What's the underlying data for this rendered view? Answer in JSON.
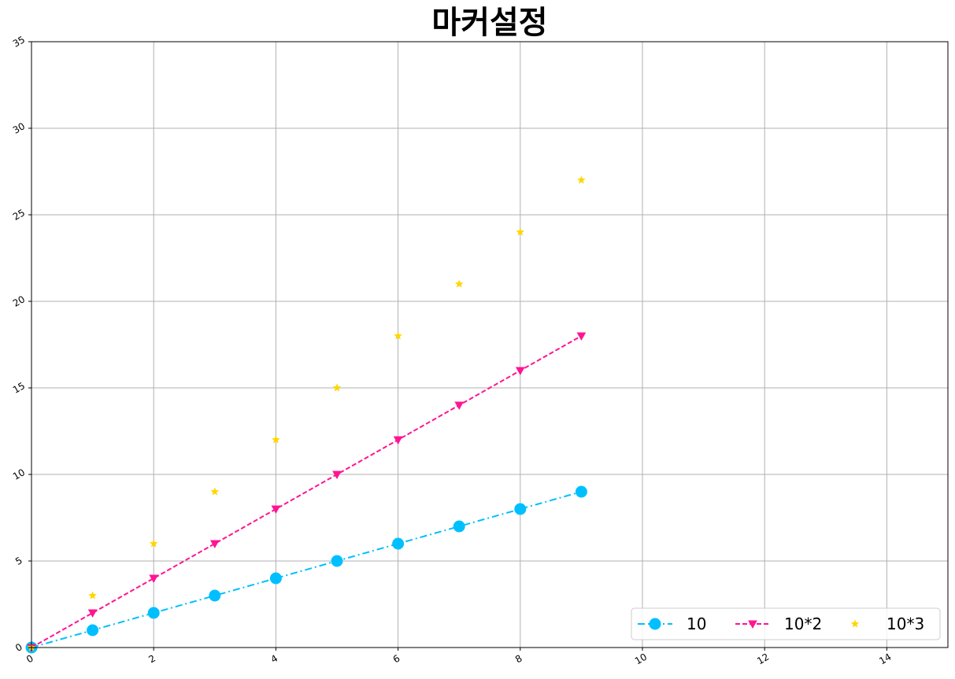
{
  "chart_data": {
    "type": "line",
    "title": "마커설정",
    "xlabel": "",
    "ylabel": "",
    "xlim": [
      0,
      15
    ],
    "ylim": [
      0,
      35
    ],
    "xticks": [
      0,
      2,
      4,
      6,
      8,
      10,
      12,
      14
    ],
    "yticks": [
      0,
      5,
      10,
      15,
      20,
      25,
      30,
      35
    ],
    "grid": true,
    "legend_position": "lower-right",
    "legend_columns": 3,
    "x": [
      0,
      1,
      2,
      3,
      4,
      5,
      6,
      7,
      8,
      9
    ],
    "series": [
      {
        "name": "10",
        "values": [
          0,
          1,
          2,
          3,
          4,
          5,
          6,
          7,
          8,
          9
        ],
        "color": "#00bfff",
        "line": "dashdot",
        "marker": "circle"
      },
      {
        "name": "10*2",
        "values": [
          0,
          2,
          4,
          6,
          8,
          10,
          12,
          14,
          16,
          18
        ],
        "color": "#ff1493",
        "line": "dashed",
        "marker": "triangle-down"
      },
      {
        "name": "10*3",
        "values": [
          0,
          3,
          6,
          9,
          12,
          15,
          18,
          21,
          24,
          27
        ],
        "color": "#ffd700",
        "line": "none",
        "marker": "star"
      }
    ]
  }
}
